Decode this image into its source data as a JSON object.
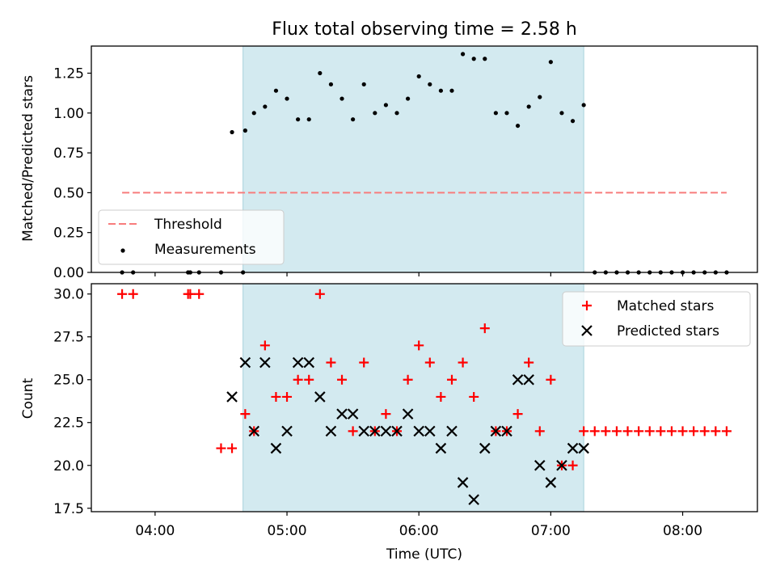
{
  "chart_data": [
    {
      "type": "scatter",
      "title": "Flux total observing time = 2.58 h",
      "ylabel": "Matched/Predicted stars",
      "xlabel": "",
      "xlim": [
        "03:31",
        "08:34"
      ],
      "ylim": [
        0,
        1.42
      ],
      "x_ticks": [
        "04:00",
        "05:00",
        "06:00",
        "07:00",
        "08:00"
      ],
      "y_ticks": [
        "0.00",
        "0.25",
        "0.50",
        "0.75",
        "1.00",
        "1.25"
      ],
      "grid": false,
      "legend_placement": "lower-left",
      "shaded_span": {
        "x0": "04:40",
        "x1": "07:15",
        "color": "#d3eaf0"
      },
      "threshold": {
        "name": "Threshold",
        "value": 0.5,
        "x": [
          "03:45",
          "08:20"
        ],
        "color": "#f87c7c",
        "style": "dashed"
      },
      "series": [
        {
          "name": "Measurements",
          "color": "#000000",
          "points": [
            [
              "03:45",
              0
            ],
            [
              "03:50",
              0
            ],
            [
              "04:15",
              0
            ],
            [
              "04:16",
              0
            ],
            [
              "04:20",
              0
            ],
            [
              "04:30",
              0
            ],
            [
              "04:35",
              0.88
            ],
            [
              "04:40",
              0
            ],
            [
              "04:41",
              0.89
            ],
            [
              "04:45",
              1.0
            ],
            [
              "04:50",
              1.04
            ],
            [
              "04:55",
              1.14
            ],
            [
              "05:00",
              1.09
            ],
            [
              "05:05",
              0.96
            ],
            [
              "05:10",
              0.96
            ],
            [
              "05:15",
              1.25
            ],
            [
              "05:20",
              1.18
            ],
            [
              "05:25",
              1.09
            ],
            [
              "05:30",
              0.96
            ],
            [
              "05:35",
              1.18
            ],
            [
              "05:40",
              1.0
            ],
            [
              "05:45",
              1.05
            ],
            [
              "05:50",
              1.0
            ],
            [
              "05:55",
              1.09
            ],
            [
              "06:00",
              1.23
            ],
            [
              "06:05",
              1.18
            ],
            [
              "06:10",
              1.14
            ],
            [
              "06:15",
              1.14
            ],
            [
              "06:20",
              1.37
            ],
            [
              "06:25",
              1.34
            ],
            [
              "06:30",
              1.34
            ],
            [
              "06:35",
              1.0
            ],
            [
              "06:40",
              1.0
            ],
            [
              "06:45",
              0.92
            ],
            [
              "06:50",
              1.04
            ],
            [
              "06:55",
              1.1
            ],
            [
              "07:00",
              1.32
            ],
            [
              "07:05",
              1.0
            ],
            [
              "07:10",
              0.95
            ],
            [
              "07:15",
              1.05
            ],
            [
              "07:20",
              0
            ],
            [
              "07:25",
              0
            ],
            [
              "07:30",
              0
            ],
            [
              "07:35",
              0
            ],
            [
              "07:40",
              0
            ],
            [
              "07:45",
              0
            ],
            [
              "07:50",
              0
            ],
            [
              "07:55",
              0
            ],
            [
              "08:00",
              0
            ],
            [
              "08:05",
              0
            ],
            [
              "08:10",
              0
            ],
            [
              "08:15",
              0
            ],
            [
              "08:20",
              0
            ]
          ]
        }
      ]
    },
    {
      "type": "scatter",
      "title": "",
      "ylabel": "Count",
      "xlabel": "Time (UTC)",
      "xlim": [
        "03:31",
        "08:34"
      ],
      "ylim": [
        17.3,
        30.6
      ],
      "x_ticks": [
        "04:00",
        "05:00",
        "06:00",
        "07:00",
        "08:00"
      ],
      "y_ticks": [
        "17.5",
        "20.0",
        "22.5",
        "25.0",
        "27.5",
        "30.0"
      ],
      "grid": false,
      "legend_placement": "top-right",
      "shaded_span": {
        "x0": "04:40",
        "x1": "07:15",
        "color": "#d3eaf0"
      },
      "series": [
        {
          "name": "Matched stars",
          "marker": "plus",
          "color": "#ff0000",
          "points": [
            [
              "03:45",
              30
            ],
            [
              "03:50",
              30
            ],
            [
              "04:15",
              30
            ],
            [
              "04:16",
              30
            ],
            [
              "04:20",
              30
            ],
            [
              "04:30",
              21
            ],
            [
              "04:35",
              21
            ],
            [
              "04:41",
              23
            ],
            [
              "04:45",
              22
            ],
            [
              "04:50",
              27
            ],
            [
              "04:55",
              24
            ],
            [
              "05:00",
              24
            ],
            [
              "05:05",
              25
            ],
            [
              "05:10",
              25
            ],
            [
              "05:15",
              30
            ],
            [
              "05:20",
              26
            ],
            [
              "05:25",
              25
            ],
            [
              "05:30",
              22
            ],
            [
              "05:35",
              26
            ],
            [
              "05:40",
              22
            ],
            [
              "05:45",
              23
            ],
            [
              "05:50",
              22
            ],
            [
              "05:55",
              25
            ],
            [
              "06:00",
              27
            ],
            [
              "06:05",
              26
            ],
            [
              "06:10",
              24
            ],
            [
              "06:15",
              25
            ],
            [
              "06:20",
              26
            ],
            [
              "06:25",
              24
            ],
            [
              "06:30",
              28
            ],
            [
              "06:35",
              22
            ],
            [
              "06:40",
              22
            ],
            [
              "06:45",
              23
            ],
            [
              "06:50",
              26
            ],
            [
              "06:55",
              22
            ],
            [
              "07:00",
              25
            ],
            [
              "07:05",
              20
            ],
            [
              "07:10",
              20
            ],
            [
              "07:15",
              22
            ],
            [
              "07:20",
              22
            ],
            [
              "07:25",
              22
            ],
            [
              "07:30",
              22
            ],
            [
              "07:35",
              22
            ],
            [
              "07:40",
              22
            ],
            [
              "07:45",
              22
            ],
            [
              "07:50",
              22
            ],
            [
              "07:55",
              22
            ],
            [
              "08:00",
              22
            ],
            [
              "08:05",
              22
            ],
            [
              "08:10",
              22
            ],
            [
              "08:15",
              22
            ],
            [
              "08:20",
              22
            ]
          ]
        },
        {
          "name": "Predicted stars",
          "marker": "x",
          "color": "#000000",
          "points": [
            [
              "04:35",
              24
            ],
            [
              "04:41",
              26
            ],
            [
              "04:45",
              22
            ],
            [
              "04:50",
              26
            ],
            [
              "04:55",
              21
            ],
            [
              "05:00",
              22
            ],
            [
              "05:05",
              26
            ],
            [
              "05:10",
              26
            ],
            [
              "05:15",
              24
            ],
            [
              "05:20",
              22
            ],
            [
              "05:25",
              23
            ],
            [
              "05:30",
              23
            ],
            [
              "05:35",
              22
            ],
            [
              "05:40",
              22
            ],
            [
              "05:45",
              22
            ],
            [
              "05:50",
              22
            ],
            [
              "05:55",
              23
            ],
            [
              "06:00",
              22
            ],
            [
              "06:05",
              22
            ],
            [
              "06:10",
              21
            ],
            [
              "06:15",
              22
            ],
            [
              "06:20",
              19
            ],
            [
              "06:25",
              18
            ],
            [
              "06:30",
              21
            ],
            [
              "06:35",
              22
            ],
            [
              "06:40",
              22
            ],
            [
              "06:45",
              25
            ],
            [
              "06:50",
              25
            ],
            [
              "06:55",
              20
            ],
            [
              "07:00",
              19
            ],
            [
              "07:05",
              20
            ],
            [
              "07:10",
              21
            ],
            [
              "07:15",
              21
            ]
          ]
        }
      ]
    }
  ]
}
